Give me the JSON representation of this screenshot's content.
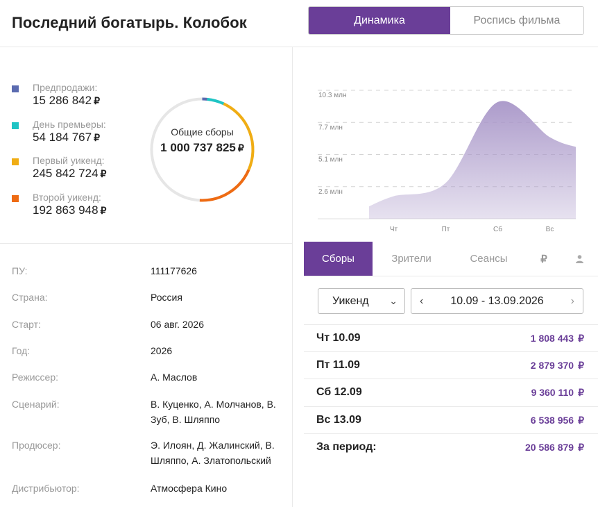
{
  "header": {
    "title": "Последний богатырь. Колобок"
  },
  "view_toggle": {
    "active": "Динамика",
    "inactive": "Роспись фильма"
  },
  "currency": "₽",
  "breakdown": [
    {
      "label": "Предпродажи:",
      "value": "15 286 842",
      "color": "#5b6bb0"
    },
    {
      "label": "День премьеры:",
      "value": "54 184 767",
      "color": "#1fc4c4"
    },
    {
      "label": "Первый уикенд:",
      "value": "245 842 724",
      "color": "#f0ad14"
    },
    {
      "label": "Второй уикенд:",
      "value": "192 863 948",
      "color": "#ee6b13"
    }
  ],
  "total": {
    "label": "Общие сборы",
    "value": "1 000 737 825"
  },
  "film_info": [
    {
      "key": "ПУ:",
      "value": "111177626"
    },
    {
      "key": "Страна:",
      "value": "Россия"
    },
    {
      "key": "Старт:",
      "value": "06 авг. 2026"
    },
    {
      "key": "Год:",
      "value": "2026"
    },
    {
      "key": "Режиссер:",
      "value": "А. Маслов"
    },
    {
      "key": "Сценарий:",
      "value": "В. Куценко, А. Молчанов, В. Зуб, В. Шляппо"
    },
    {
      "key": "Продюсер:",
      "value": "Э. Илоян, Д. Жалинский, В. Шляппо, А. Златопольский"
    },
    {
      "key": "Дистрибьютор:",
      "value": "Атмосфера Кино"
    }
  ],
  "chart_data": {
    "type": "area",
    "categories": [
      "Чт",
      "Пт",
      "Сб",
      "Вс"
    ],
    "values": [
      1808443,
      2879370,
      9360110,
      6538956
    ],
    "y_ticks": [
      "2.6 млн",
      "5.1 млн",
      "7.7 млн",
      "10.3 млн"
    ],
    "grid": true,
    "color": "#a896c8"
  },
  "metric_tabs": [
    {
      "label": "Сборы",
      "icon": "",
      "active": true
    },
    {
      "label": "Зрители",
      "icon": "",
      "active": false
    },
    {
      "label": "Сеансы",
      "icon": "",
      "active": false
    },
    {
      "label": "₽",
      "icon": "ruble-icon",
      "active": false
    },
    {
      "label": "",
      "icon": "person-icon",
      "active": false
    }
  ],
  "period": {
    "select": "Уикенд",
    "range": "10.09 - 13.09.2026"
  },
  "daily": [
    {
      "day": "Чт 10.09",
      "value": "1 808 443"
    },
    {
      "day": "Пт 11.09",
      "value": "2 879 370"
    },
    {
      "day": "Сб 12.09",
      "value": "9 360 110"
    },
    {
      "day": "Вс 13.09",
      "value": "6 538 956"
    }
  ],
  "period_total": {
    "label": "За период:",
    "value": "20 586 879"
  }
}
